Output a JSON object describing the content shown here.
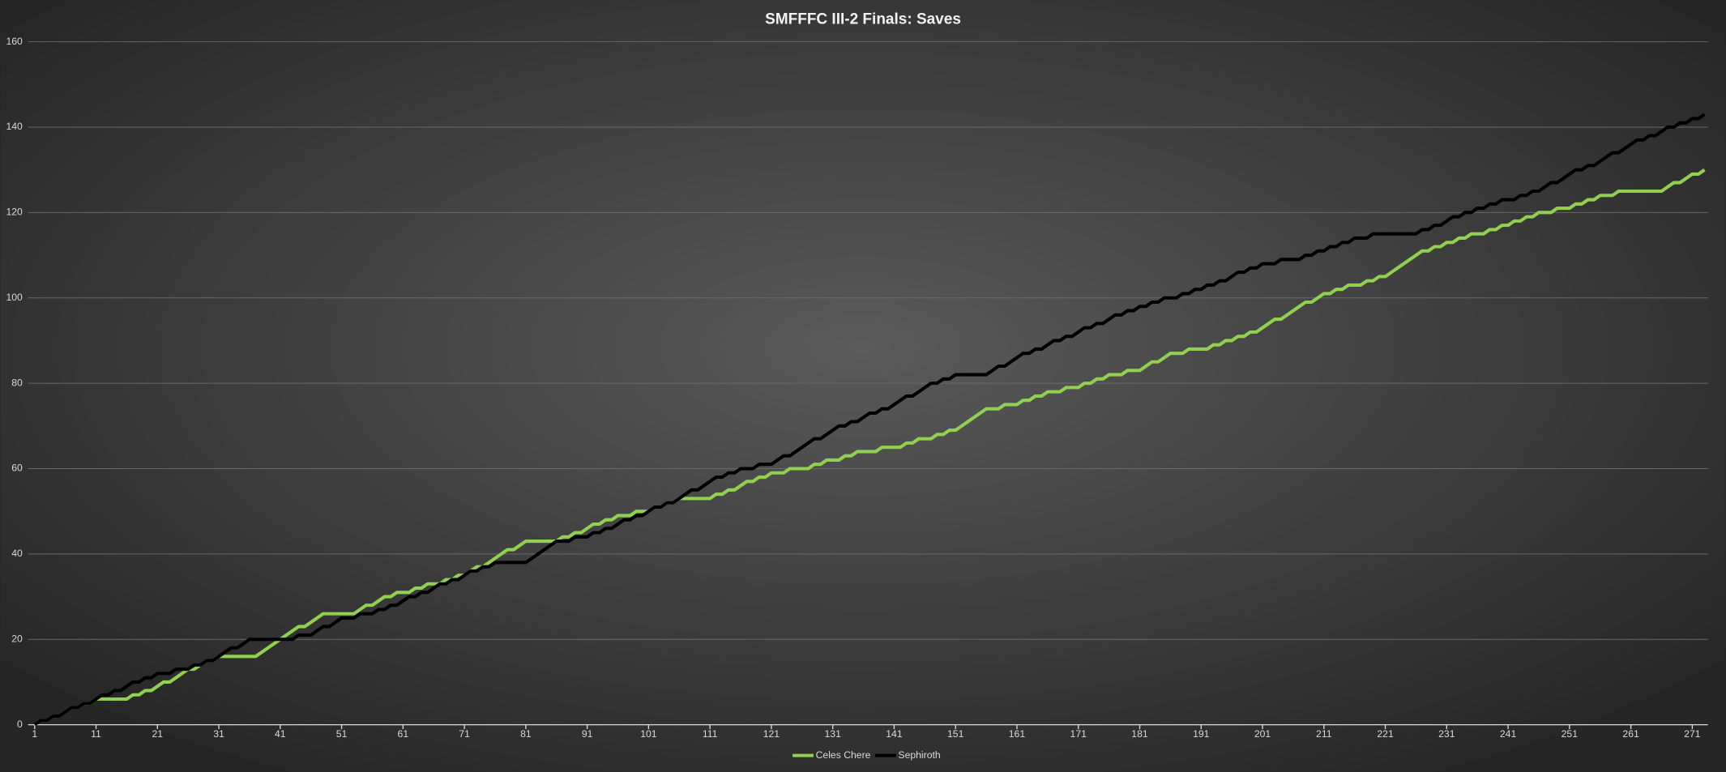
{
  "chart_data": {
    "type": "line",
    "title": "SMFFFC III-2 Finals: Saves",
    "x": [
      1,
      2,
      3,
      4,
      5,
      6,
      7,
      8,
      9,
      10,
      11,
      12,
      13,
      14,
      15,
      16,
      17,
      18,
      19,
      20,
      21,
      22,
      23,
      24,
      25,
      26,
      27,
      28,
      29,
      30,
      31,
      32,
      33,
      34,
      35,
      36,
      37,
      38,
      39,
      40,
      41,
      42,
      43,
      44,
      45,
      46,
      47,
      48,
      49,
      50,
      51,
      52,
      53,
      54,
      55,
      56,
      57,
      58,
      59,
      60,
      61,
      62,
      63,
      64,
      65,
      66,
      67,
      68,
      69,
      70,
      71,
      72,
      73,
      74,
      75,
      76,
      77,
      78,
      79,
      80,
      81,
      82,
      83,
      84,
      85,
      86,
      87,
      88,
      89,
      90,
      91,
      92,
      93,
      94,
      95,
      96,
      97,
      98,
      99,
      100,
      101,
      102,
      103,
      104,
      105,
      106,
      107,
      108,
      109,
      110,
      111,
      112,
      113,
      114,
      115,
      116,
      117,
      118,
      119,
      120,
      121,
      122,
      123,
      124,
      125,
      126,
      127,
      128,
      129,
      130,
      131,
      132,
      133,
      134,
      135,
      136,
      137,
      138,
      139,
      140,
      141,
      142,
      143,
      144,
      145,
      146,
      147,
      148,
      149,
      150,
      151,
      152,
      153,
      154,
      155,
      156,
      157,
      158,
      159,
      160,
      161,
      162,
      163,
      164,
      165,
      166,
      167,
      168,
      169,
      170,
      171,
      172,
      173,
      174,
      175,
      176,
      177,
      178,
      179,
      180,
      181,
      182,
      183,
      184,
      185,
      186,
      187,
      188,
      189,
      190,
      191,
      192,
      193,
      194,
      195,
      196,
      197,
      198,
      199,
      200,
      201,
      202,
      203,
      204,
      205,
      206,
      207,
      208,
      209,
      210,
      211,
      212,
      213,
      214,
      215,
      216,
      217,
      218,
      219,
      220,
      221,
      222,
      223,
      224,
      225,
      226,
      227,
      228,
      229,
      230,
      231,
      232,
      233,
      234,
      235,
      236,
      237,
      238,
      239,
      240,
      241,
      242,
      243,
      244,
      245,
      246,
      247,
      248,
      249,
      250,
      251,
      252,
      253,
      254,
      255,
      256,
      257,
      258,
      259,
      260,
      261,
      262,
      263,
      264,
      265,
      266,
      267,
      268,
      269,
      270,
      271,
      272,
      273
    ],
    "xlim": [
      1,
      273
    ],
    "xticks": [
      1,
      11,
      21,
      31,
      41,
      51,
      61,
      71,
      81,
      91,
      101,
      111,
      121,
      131,
      141,
      151,
      161,
      171,
      181,
      191,
      201,
      211,
      221,
      231,
      241,
      251,
      261,
      271
    ],
    "ylim": [
      0,
      160
    ],
    "yticks": [
      0,
      20,
      40,
      60,
      80,
      100,
      120,
      140,
      160
    ],
    "grid": true,
    "legend": "bottom",
    "series": [
      {
        "name": "Celes Chere",
        "color": "#92d050",
        "values": [
          0,
          1,
          1,
          2,
          2,
          3,
          4,
          4,
          5,
          5,
          6,
          6,
          6,
          6,
          6,
          6,
          7,
          7,
          8,
          8,
          9,
          10,
          10,
          11,
          12,
          13,
          13,
          14,
          15,
          15,
          16,
          16,
          16,
          16,
          16,
          16,
          16,
          17,
          18,
          19,
          20,
          21,
          22,
          23,
          23,
          24,
          25,
          26,
          26,
          26,
          26,
          26,
          26,
          27,
          28,
          28,
          29,
          30,
          30,
          31,
          31,
          31,
          32,
          32,
          33,
          33,
          33,
          34,
          34,
          35,
          35,
          36,
          37,
          37,
          38,
          39,
          40,
          41,
          41,
          42,
          43,
          43,
          43,
          43,
          43,
          43,
          44,
          44,
          45,
          45,
          46,
          47,
          47,
          48,
          48,
          49,
          49,
          49,
          50,
          50,
          50,
          51,
          51,
          52,
          52,
          53,
          53,
          53,
          53,
          53,
          53,
          54,
          54,
          55,
          55,
          56,
          57,
          57,
          58,
          58,
          59,
          59,
          59,
          60,
          60,
          60,
          60,
          61,
          61,
          62,
          62,
          62,
          63,
          63,
          64,
          64,
          64,
          64,
          65,
          65,
          65,
          65,
          66,
          66,
          67,
          67,
          67,
          68,
          68,
          69,
          69,
          70,
          71,
          72,
          73,
          74,
          74,
          74,
          75,
          75,
          75,
          76,
          76,
          77,
          77,
          78,
          78,
          78,
          79,
          79,
          79,
          80,
          80,
          81,
          81,
          82,
          82,
          82,
          83,
          83,
          83,
          84,
          85,
          85,
          86,
          87,
          87,
          87,
          88,
          88,
          88,
          88,
          89,
          89,
          90,
          90,
          91,
          91,
          92,
          92,
          93,
          94,
          95,
          95,
          96,
          97,
          98,
          99,
          99,
          100,
          101,
          101,
          102,
          102,
          103,
          103,
          103,
          104,
          104,
          105,
          105,
          106,
          107,
          108,
          109,
          110,
          111,
          111,
          112,
          112,
          113,
          113,
          114,
          114,
          115,
          115,
          115,
          116,
          116,
          117,
          117,
          118,
          118,
          119,
          119,
          120,
          120,
          120,
          121,
          121,
          121,
          122,
          122,
          123,
          123,
          124,
          124,
          124,
          125,
          125,
          125,
          125,
          125,
          125,
          125,
          125,
          126,
          127,
          127,
          128,
          129,
          129,
          130
        ]
      },
      {
        "name": "Sephiroth",
        "color": "#000000",
        "values": [
          0,
          1,
          1,
          2,
          2,
          3,
          4,
          4,
          5,
          5,
          6,
          7,
          7,
          8,
          8,
          9,
          10,
          10,
          11,
          11,
          12,
          12,
          12,
          13,
          13,
          13,
          14,
          14,
          15,
          15,
          16,
          17,
          18,
          18,
          19,
          20,
          20,
          20,
          20,
          20,
          20,
          20,
          20,
          21,
          21,
          21,
          22,
          23,
          23,
          24,
          25,
          25,
          25,
          26,
          26,
          26,
          27,
          27,
          28,
          28,
          29,
          30,
          30,
          31,
          31,
          32,
          33,
          33,
          34,
          34,
          35,
          36,
          36,
          37,
          37,
          38,
          38,
          38,
          38,
          38,
          38,
          39,
          40,
          41,
          42,
          43,
          43,
          43,
          44,
          44,
          44,
          45,
          45,
          46,
          46,
          47,
          48,
          48,
          49,
          49,
          50,
          51,
          51,
          52,
          52,
          53,
          54,
          55,
          55,
          56,
          57,
          58,
          58,
          59,
          59,
          60,
          60,
          60,
          61,
          61,
          61,
          62,
          63,
          63,
          64,
          65,
          66,
          67,
          67,
          68,
          69,
          70,
          70,
          71,
          71,
          72,
          73,
          73,
          74,
          74,
          75,
          76,
          77,
          77,
          78,
          79,
          80,
          80,
          81,
          81,
          82,
          82,
          82,
          82,
          82,
          82,
          83,
          84,
          84,
          85,
          86,
          87,
          87,
          88,
          88,
          89,
          90,
          90,
          91,
          91,
          92,
          93,
          93,
          94,
          94,
          95,
          96,
          96,
          97,
          97,
          98,
          98,
          99,
          99,
          100,
          100,
          100,
          101,
          101,
          102,
          102,
          103,
          103,
          104,
          104,
          105,
          106,
          106,
          107,
          107,
          108,
          108,
          108,
          109,
          109,
          109,
          109,
          110,
          110,
          111,
          111,
          112,
          112,
          113,
          113,
          114,
          114,
          114,
          115,
          115,
          115,
          115,
          115,
          115,
          115,
          115,
          116,
          116,
          117,
          117,
          118,
          119,
          119,
          120,
          120,
          121,
          121,
          122,
          122,
          123,
          123,
          123,
          124,
          124,
          125,
          125,
          126,
          127,
          127,
          128,
          129,
          130,
          130,
          131,
          131,
          132,
          133,
          134,
          134,
          135,
          136,
          137,
          137,
          138,
          138,
          139,
          140,
          140,
          141,
          141,
          142,
          142,
          143
        ]
      }
    ]
  }
}
